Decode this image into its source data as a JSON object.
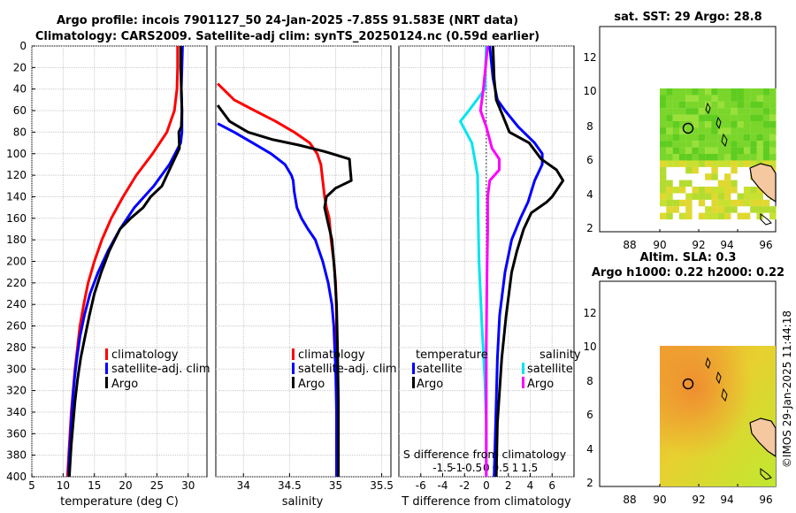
{
  "title_line1": "Argo profile: incois 7901127_50 24-Jan-2025 -7.85S 91.583E (NRT data)",
  "title_line2": "Climatology: CARS2009. Satellite-adj clim: synTS_20250124.nc (0.59d earlier)",
  "credit": "©IMOS 29-Jan-2025 11:44:18",
  "colors": {
    "climatology": "#ff0000",
    "satellite": "#0000ff",
    "argo": "#000000",
    "s_satellite": "#00e5ee",
    "s_argo": "#ff00ff",
    "grid": "#c8c8c8"
  },
  "chart_data": [
    {
      "type": "line",
      "id": "temperature",
      "xlabel": "temperature (deg C)",
      "ylabel": "depth",
      "xlim": [
        5,
        33
      ],
      "ylim": [
        0,
        400
      ],
      "xticks": [
        5,
        10,
        15,
        20,
        25,
        30
      ],
      "yticks": [
        0,
        20,
        40,
        60,
        80,
        100,
        120,
        140,
        160,
        180,
        200,
        220,
        240,
        260,
        280,
        300,
        320,
        340,
        360,
        380,
        400
      ],
      "legend": [
        "climatology",
        "satellite-adj. clim",
        "Argo"
      ],
      "series": [
        {
          "name": "climatology",
          "points": [
            [
              28.3,
              0
            ],
            [
              28.3,
              20
            ],
            [
              28.2,
              40
            ],
            [
              27.8,
              60
            ],
            [
              26.6,
              80
            ],
            [
              24.3,
              100
            ],
            [
              21.7,
              120
            ],
            [
              19.6,
              140
            ],
            [
              17.7,
              160
            ],
            [
              16.2,
              180
            ],
            [
              15.0,
              200
            ],
            [
              14.0,
              220
            ],
            [
              13.3,
              240
            ],
            [
              12.7,
              260
            ],
            [
              12.3,
              280
            ],
            [
              11.9,
              300
            ],
            [
              11.6,
              320
            ],
            [
              11.3,
              340
            ],
            [
              11.1,
              360
            ],
            [
              10.9,
              380
            ],
            [
              10.7,
              400
            ]
          ]
        },
        {
          "name": "satellite-adj. clim",
          "points": [
            [
              29.1,
              0
            ],
            [
              29.0,
              20
            ],
            [
              28.9,
              40
            ],
            [
              29.0,
              60
            ],
            [
              29.0,
              80
            ],
            [
              28.8,
              90
            ],
            [
              27.0,
              110
            ],
            [
              24.5,
              130
            ],
            [
              21.4,
              150
            ],
            [
              19.1,
              170
            ],
            [
              17.2,
              190
            ],
            [
              15.6,
              210
            ],
            [
              14.3,
              230
            ],
            [
              13.4,
              250
            ],
            [
              12.7,
              270
            ],
            [
              12.2,
              290
            ],
            [
              11.8,
              310
            ],
            [
              11.5,
              330
            ],
            [
              11.3,
              350
            ],
            [
              11.1,
              370
            ],
            [
              10.9,
              390
            ],
            [
              10.9,
              400
            ]
          ]
        },
        {
          "name": "Argo",
          "points": [
            [
              28.8,
              0
            ],
            [
              28.8,
              20
            ],
            [
              28.9,
              40
            ],
            [
              29.0,
              60
            ],
            [
              28.9,
              75
            ],
            [
              28.5,
              80
            ],
            [
              28.6,
              95
            ],
            [
              27.4,
              110
            ],
            [
              26.6,
              120
            ],
            [
              25.8,
              130
            ],
            [
              24.0,
              140
            ],
            [
              22.8,
              150
            ],
            [
              20.8,
              160
            ],
            [
              19.1,
              170
            ],
            [
              17.4,
              190
            ],
            [
              16.1,
              210
            ],
            [
              15.0,
              230
            ],
            [
              14.2,
              250
            ],
            [
              13.5,
              270
            ],
            [
              12.8,
              290
            ],
            [
              12.3,
              310
            ],
            [
              11.9,
              330
            ],
            [
              11.6,
              350
            ],
            [
              11.3,
              370
            ],
            [
              11.1,
              390
            ],
            [
              11.0,
              400
            ]
          ]
        }
      ]
    },
    {
      "type": "line",
      "id": "salinity",
      "xlabel": "salinity",
      "xlim": [
        33.7,
        35.6
      ],
      "ylim": [
        0,
        400
      ],
      "xticks": [
        34,
        34.5,
        35,
        35.5
      ],
      "legend": [
        "climatology",
        "satellite-adj. clim",
        "Argo"
      ],
      "series": [
        {
          "name": "climatology",
          "points": [
            [
              33.72,
              35
            ],
            [
              33.9,
              50
            ],
            [
              34.12,
              60
            ],
            [
              34.35,
              70
            ],
            [
              34.55,
              80
            ],
            [
              34.72,
              90
            ],
            [
              34.8,
              100
            ],
            [
              34.84,
              110
            ],
            [
              34.86,
              125
            ],
            [
              34.88,
              140
            ],
            [
              34.9,
              150
            ],
            [
              34.93,
              160
            ],
            [
              34.95,
              180
            ],
            [
              34.98,
              200
            ],
            [
              35.0,
              220
            ],
            [
              35.01,
              250
            ],
            [
              35.01,
              300
            ],
            [
              35.01,
              350
            ],
            [
              35.01,
              400
            ]
          ]
        },
        {
          "name": "satellite-adj. clim",
          "points": [
            [
              33.72,
              72
            ],
            [
              33.9,
              80
            ],
            [
              34.1,
              90
            ],
            [
              34.3,
              100
            ],
            [
              34.45,
              110
            ],
            [
              34.52,
              120
            ],
            [
              34.54,
              125
            ],
            [
              34.55,
              135
            ],
            [
              34.58,
              150
            ],
            [
              34.63,
              160
            ],
            [
              34.7,
              170
            ],
            [
              34.78,
              180
            ],
            [
              34.86,
              200
            ],
            [
              34.92,
              220
            ],
            [
              34.96,
              240
            ],
            [
              34.98,
              260
            ],
            [
              34.99,
              280
            ],
            [
              35.0,
              300
            ],
            [
              35.01,
              340
            ],
            [
              35.01,
              400
            ]
          ]
        },
        {
          "name": "Argo",
          "points": [
            [
              33.72,
              55
            ],
            [
              33.85,
              70
            ],
            [
              34.05,
              80
            ],
            [
              34.32,
              87
            ],
            [
              34.6,
              92
            ],
            [
              34.88,
              98
            ],
            [
              35.15,
              105
            ],
            [
              35.16,
              115
            ],
            [
              35.17,
              125
            ],
            [
              35.0,
              132
            ],
            [
              34.9,
              140
            ],
            [
              34.88,
              150
            ],
            [
              34.92,
              165
            ],
            [
              34.96,
              180
            ],
            [
              34.99,
              210
            ],
            [
              35.01,
              240
            ],
            [
              35.02,
              280
            ],
            [
              35.03,
              330
            ],
            [
              35.03,
              400
            ]
          ]
        }
      ]
    },
    {
      "type": "line",
      "id": "difference",
      "xlabel": "T difference from climatology",
      "xlabel_top": "S difference from climatology",
      "xlim": [
        -8,
        8
      ],
      "ylim": [
        0,
        400
      ],
      "xticks": [
        -6,
        -4,
        -2,
        0,
        2,
        4,
        6
      ],
      "xticks_top": [
        "-1.5",
        "-1",
        "-0.5",
        "0",
        "0.5",
        "1",
        "1.5"
      ],
      "legend_temperature_title": "temperature",
      "legend_salinity_title": "salinity",
      "legend_labels": [
        "satellite",
        "Argo",
        "satellite",
        "Argo"
      ],
      "series": [
        {
          "name": "T satellite",
          "points": [
            [
              0.3,
              0
            ],
            [
              0.6,
              30
            ],
            [
              1.0,
              50
            ],
            [
              1.7,
              60
            ],
            [
              2.9,
              75
            ],
            [
              4.4,
              90
            ],
            [
              5.1,
              100
            ],
            [
              5.1,
              110
            ],
            [
              4.4,
              125
            ],
            [
              3.8,
              145
            ],
            [
              3.1,
              160
            ],
            [
              2.3,
              180
            ],
            [
              1.7,
              210
            ],
            [
              1.2,
              250
            ],
            [
              1.0,
              290
            ],
            [
              0.9,
              330
            ],
            [
              0.7,
              400
            ]
          ]
        },
        {
          "name": "T Argo",
          "points": [
            [
              0.6,
              0
            ],
            [
              0.7,
              30
            ],
            [
              0.9,
              50
            ],
            [
              1.5,
              65
            ],
            [
              2.1,
              80
            ],
            [
              3.9,
              90
            ],
            [
              5.0,
              105
            ],
            [
              6.4,
              115
            ],
            [
              7.0,
              125
            ],
            [
              6.0,
              140
            ],
            [
              5.5,
              145
            ],
            [
              4.1,
              155
            ],
            [
              3.4,
              170
            ],
            [
              2.8,
              190
            ],
            [
              2.3,
              210
            ],
            [
              1.8,
              250
            ],
            [
              1.4,
              290
            ],
            [
              1.0,
              350
            ],
            [
              0.9,
              400
            ]
          ]
        },
        {
          "name": "S satellite",
          "points": [
            [
              0.0,
              0
            ],
            [
              -0.05,
              40
            ],
            [
              -0.6,
              60
            ],
            [
              -0.9,
              70
            ],
            [
              -0.5,
              90
            ],
            [
              -0.3,
              120
            ],
            [
              -0.28,
              160
            ],
            [
              -0.25,
              200
            ],
            [
              -0.15,
              260
            ],
            [
              -0.05,
              310
            ],
            [
              0.0,
              350
            ],
            [
              0.0,
              400
            ]
          ]
        },
        {
          "name": "S Argo",
          "points": [
            [
              0.05,
              0
            ],
            [
              -0.1,
              40
            ],
            [
              -0.2,
              60
            ],
            [
              0.0,
              75
            ],
            [
              0.2,
              95
            ],
            [
              0.45,
              105
            ],
            [
              0.45,
              115
            ],
            [
              0.12,
              125
            ],
            [
              0.05,
              140
            ],
            [
              0.05,
              170
            ],
            [
              0.02,
              220
            ],
            [
              0.0,
              280
            ],
            [
              0.0,
              400
            ]
          ]
        }
      ]
    },
    {
      "type": "heatmap",
      "id": "sst_map",
      "title": "sat. SST: 29 Argo: 28.8",
      "xticks": [
        "88",
        "90",
        "92",
        "94",
        "96"
      ],
      "yticks": [
        "2",
        "4",
        "6",
        "8",
        "10",
        "12"
      ]
    },
    {
      "type": "heatmap",
      "id": "sla_map",
      "title_line1": "Altim. SLA: 0.3",
      "title_line2": "Argo h1000: 0.22 h2000: 0.22",
      "xticks": [
        "88",
        "90",
        "92",
        "94",
        "96"
      ],
      "yticks": [
        "2",
        "4",
        "6",
        "8",
        "10",
        "12"
      ]
    }
  ]
}
